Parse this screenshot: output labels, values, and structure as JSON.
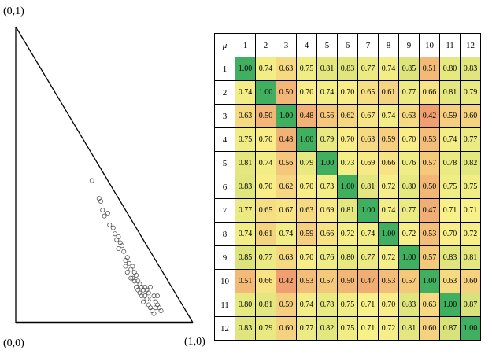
{
  "chart_data": [
    {
      "type": "scatter",
      "plot_kind": "ternary-simplex",
      "corner_labels": {
        "top": "(0,1)",
        "origin": "(0,0)",
        "right": "(1,0)"
      },
      "marker": "open-circle",
      "marker_color": "#555555",
      "points": [
        [
          0.43,
          0.48
        ],
        [
          0.47,
          0.42
        ],
        [
          0.49,
          0.38
        ],
        [
          0.48,
          0.41
        ],
        [
          0.52,
          0.37
        ],
        [
          0.5,
          0.36
        ],
        [
          0.53,
          0.33
        ],
        [
          0.55,
          0.32
        ],
        [
          0.56,
          0.3
        ],
        [
          0.57,
          0.28
        ],
        [
          0.58,
          0.29
        ],
        [
          0.59,
          0.27
        ],
        [
          0.6,
          0.26
        ],
        [
          0.58,
          0.25
        ],
        [
          0.61,
          0.24
        ],
        [
          0.63,
          0.22
        ],
        [
          0.62,
          0.21
        ],
        [
          0.64,
          0.2
        ],
        [
          0.65,
          0.18
        ],
        [
          0.66,
          0.19
        ],
        [
          0.67,
          0.17
        ],
        [
          0.68,
          0.16
        ],
        [
          0.66,
          0.15
        ],
        [
          0.69,
          0.14
        ],
        [
          0.7,
          0.13
        ],
        [
          0.71,
          0.12
        ],
        [
          0.72,
          0.11
        ],
        [
          0.7,
          0.1
        ],
        [
          0.73,
          0.09
        ],
        [
          0.74,
          0.08
        ],
        [
          0.72,
          0.07
        ],
        [
          0.75,
          0.06
        ],
        [
          0.76,
          0.05
        ],
        [
          0.77,
          0.04
        ],
        [
          0.78,
          0.03
        ],
        [
          0.79,
          0.05
        ],
        [
          0.75,
          0.1
        ],
        [
          0.76,
          0.12
        ],
        [
          0.78,
          0.09
        ],
        [
          0.8,
          0.06
        ],
        [
          0.68,
          0.12
        ],
        [
          0.69,
          0.11
        ],
        [
          0.71,
          0.09
        ],
        [
          0.73,
          0.12
        ],
        [
          0.74,
          0.11
        ],
        [
          0.77,
          0.08
        ],
        [
          0.79,
          0.07
        ],
        [
          0.81,
          0.05
        ],
        [
          0.82,
          0.04
        ],
        [
          0.67,
          0.14
        ],
        [
          0.65,
          0.15
        ],
        [
          0.63,
          0.17
        ],
        [
          0.62,
          0.19
        ],
        [
          0.8,
          0.09
        ]
      ]
    },
    {
      "type": "heatmap",
      "corner_label": "μ",
      "labels": [
        "1",
        "2",
        "3",
        "4",
        "5",
        "6",
        "7",
        "8",
        "9",
        "10",
        "11",
        "12"
      ],
      "color_scale": {
        "low": "#f0a070",
        "mid": "#f8f088",
        "high": "#40b060",
        "min": 0.42,
        "max": 1.0
      },
      "values": [
        [
          "1.00",
          "0.74",
          "0.63",
          "0.75",
          "0.81",
          "0.83",
          "0.77",
          "0.74",
          "0.85",
          "0.51",
          "0.80",
          "0.83"
        ],
        [
          "0.74",
          "1.00",
          "0.50",
          "0.70",
          "0.74",
          "0.70",
          "0.65",
          "0.61",
          "0.77",
          "0.66",
          "0.81",
          "0.79"
        ],
        [
          "0.63",
          "0.50",
          "1.00",
          "0.48",
          "0.56",
          "0.62",
          "0.67",
          "0.74",
          "0.63",
          "0.42",
          "0.59",
          "0.60"
        ],
        [
          "0.75",
          "0.70",
          "0.48",
          "1.00",
          "0.79",
          "0.70",
          "0.63",
          "0.59",
          "0.70",
          "0.53",
          "0.74",
          "0.77"
        ],
        [
          "0.81",
          "0.74",
          "0.56",
          "0.79",
          "1.00",
          "0.73",
          "0.69",
          "0.66",
          "0.76",
          "0.57",
          "0.78",
          "0.82"
        ],
        [
          "0.83",
          "0.70",
          "0.62",
          "0.70",
          "0.73",
          "1.00",
          "0.81",
          "0.72",
          "0.80",
          "0.50",
          "0.75",
          "0.75"
        ],
        [
          "0.77",
          "0.65",
          "0.67",
          "0.63",
          "0.69",
          "0.81",
          "1.00",
          "0.74",
          "0.77",
          "0.47",
          "0.71",
          "0.71"
        ],
        [
          "0.74",
          "0.61",
          "0.74",
          "0.59",
          "0.66",
          "0.72",
          "0.74",
          "1.00",
          "0.72",
          "0.53",
          "0.70",
          "0.72"
        ],
        [
          "0.85",
          "0.77",
          "0.63",
          "0.70",
          "0.76",
          "0.80",
          "0.77",
          "0.72",
          "1.00",
          "0.57",
          "0.83",
          "0.81"
        ],
        [
          "0.51",
          "0.66",
          "0.42",
          "0.53",
          "0.57",
          "0.50",
          "0.47",
          "0.53",
          "0.57",
          "1.00",
          "0.63",
          "0.60"
        ],
        [
          "0.80",
          "0.81",
          "0.59",
          "0.74",
          "0.78",
          "0.75",
          "0.71",
          "0.70",
          "0.83",
          "0.63",
          "1.00",
          "0.87"
        ],
        [
          "0.83",
          "0.79",
          "0.60",
          "0.77",
          "0.82",
          "0.75",
          "0.71",
          "0.72",
          "0.81",
          "0.60",
          "0.87",
          "1.00"
        ]
      ]
    }
  ]
}
